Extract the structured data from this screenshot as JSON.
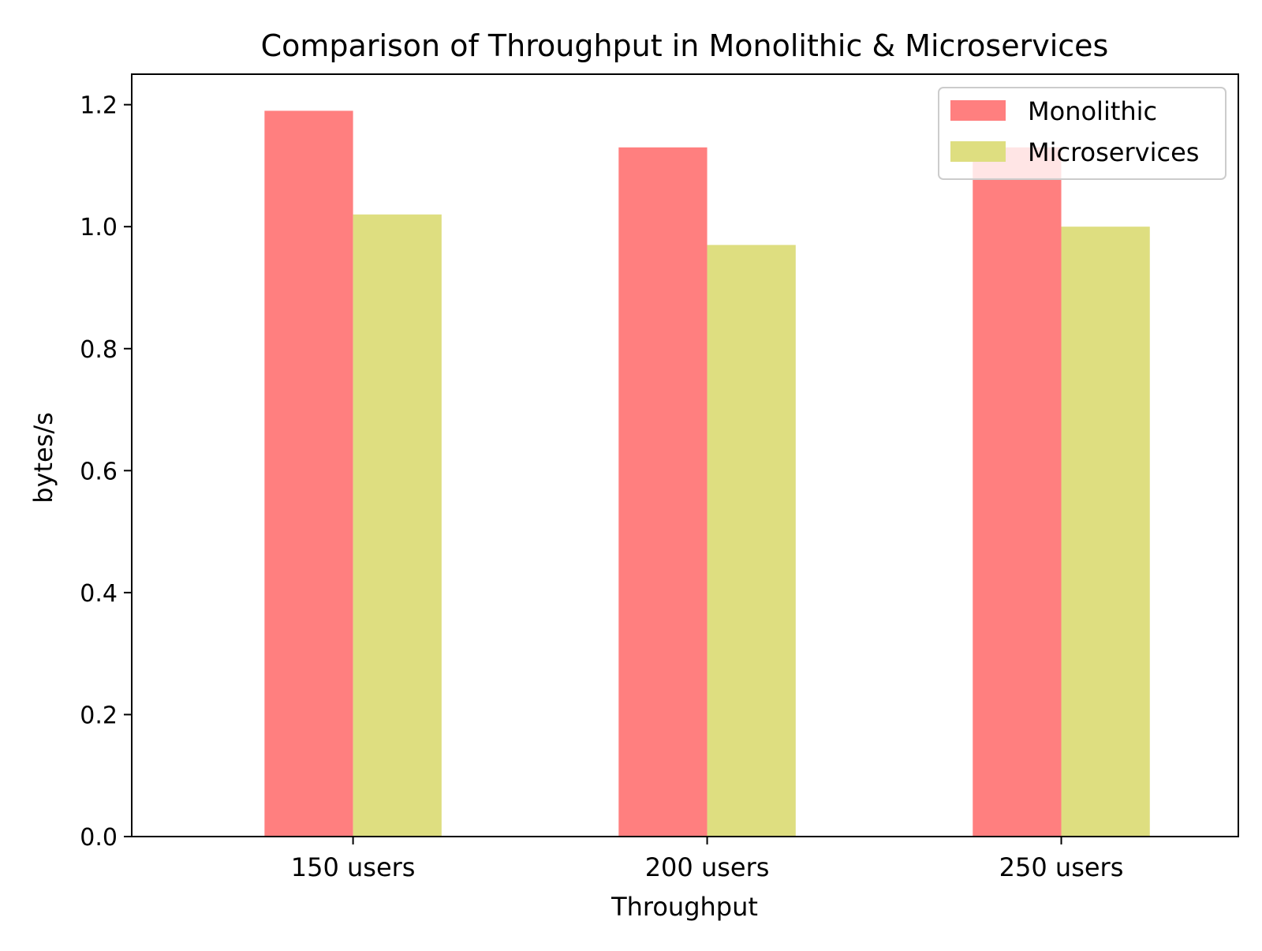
{
  "chart_data": {
    "type": "bar",
    "title": "Comparison of Throughput in Monolithic & Microservices",
    "xlabel": "Throughput",
    "ylabel": "bytes/s",
    "categories": [
      "150 users",
      "200 users",
      "250 users"
    ],
    "series": [
      {
        "name": "Monolithic",
        "values": [
          1.19,
          1.13,
          1.13
        ],
        "color": "#ff7f7f"
      },
      {
        "name": "Microservices",
        "values": [
          1.02,
          0.97,
          1.0
        ],
        "color": "#dede80"
      }
    ],
    "ylim": [
      0,
      1.25
    ],
    "yticks": [
      "0.0",
      "0.2",
      "0.4",
      "0.6",
      "0.8",
      "1.0",
      "1.2"
    ],
    "ytick_values": [
      0,
      0.2,
      0.4,
      0.6,
      0.8,
      1.0,
      1.2
    ],
    "grid": false,
    "legend_position": "top-right"
  }
}
